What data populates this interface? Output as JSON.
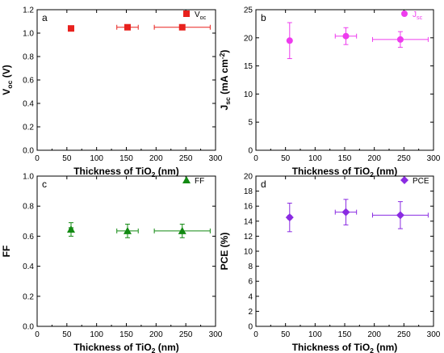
{
  "chart_data": [
    {
      "type": "scatter",
      "panel_label": "a",
      "xlabel": "Thickness of TiO₂ (nm)",
      "ylabel": "Voc (V)",
      "xlim": [
        0,
        300
      ],
      "ylim": [
        0,
        1.2
      ],
      "xticks": [
        "0",
        "50",
        "100",
        "150",
        "200",
        "250",
        "300"
      ],
      "yticks": [
        "0.0",
        "0.2",
        "0.4",
        "0.6",
        "0.8",
        "1.0",
        "1.2"
      ],
      "legend_position": "top-right",
      "series": [
        {
          "name": "Voc",
          "marker": "square",
          "color": "#e8211d",
          "points": [
            {
              "x": 57,
              "y": 1.04,
              "xerr": 3,
              "yerr": 0.02
            },
            {
              "x": 152,
              "y": 1.05,
              "xerr": 18,
              "yerr": 0.01
            },
            {
              "x": 244,
              "y": 1.05,
              "xerr": 47,
              "yerr": 0.01
            }
          ]
        }
      ]
    },
    {
      "type": "scatter",
      "panel_label": "b",
      "xlabel": "Thickness of TiO₂ (nm)",
      "ylabel": "Jsc (mA cm⁻²)",
      "xlim": [
        0,
        300
      ],
      "ylim": [
        0,
        25
      ],
      "xticks": [
        "0",
        "50",
        "100",
        "150",
        "200",
        "250",
        "300"
      ],
      "yticks": [
        "0",
        "5",
        "10",
        "15",
        "20",
        "25"
      ],
      "legend_position": "top-right",
      "series": [
        {
          "name": "Jsc",
          "marker": "circle",
          "color": "#ee3cee",
          "points": [
            {
              "x": 57,
              "y": 19.5,
              "xerr": 3,
              "yerr": 3.2
            },
            {
              "x": 152,
              "y": 20.3,
              "xerr": 18,
              "yerr": 1.5
            },
            {
              "x": 244,
              "y": 19.7,
              "xerr": 47,
              "yerr": 1.4
            }
          ]
        }
      ]
    },
    {
      "type": "scatter",
      "panel_label": "c",
      "xlabel": "Thickness of TiO₂ (nm)",
      "ylabel": "FF",
      "xlim": [
        0,
        300
      ],
      "ylim": [
        0,
        1.0
      ],
      "xticks": [
        "0",
        "50",
        "100",
        "150",
        "200",
        "250",
        "300"
      ],
      "yticks": [
        "0.0",
        "0.2",
        "0.4",
        "0.6",
        "0.8",
        "1.0"
      ],
      "legend_position": "top-right",
      "series": [
        {
          "name": "FF",
          "marker": "triangle",
          "color": "#128a12",
          "points": [
            {
              "x": 57,
              "y": 0.645,
              "xerr": 3,
              "yerr": 0.045
            },
            {
              "x": 152,
              "y": 0.635,
              "xerr": 18,
              "yerr": 0.045
            },
            {
              "x": 244,
              "y": 0.635,
              "xerr": 47,
              "yerr": 0.045
            }
          ]
        }
      ]
    },
    {
      "type": "scatter",
      "panel_label": "d",
      "xlabel": "Thickness of TiO₂ (nm)",
      "ylabel": "PCE (%)",
      "xlim": [
        0,
        300
      ],
      "ylim": [
        0,
        20
      ],
      "xticks": [
        "0",
        "50",
        "100",
        "150",
        "200",
        "250",
        "300"
      ],
      "yticks": [
        "0",
        "2",
        "4",
        "6",
        "8",
        "10",
        "12",
        "14",
        "16",
        "18",
        "20"
      ],
      "legend_position": "top-right",
      "series": [
        {
          "name": "PCE",
          "marker": "diamond",
          "color": "#8a2be2",
          "points": [
            {
              "x": 57,
              "y": 14.5,
              "xerr": 3,
              "yerr": 1.9
            },
            {
              "x": 152,
              "y": 15.2,
              "xerr": 18,
              "yerr": 1.7
            },
            {
              "x": 244,
              "y": 14.8,
              "xerr": 47,
              "yerr": 1.8
            }
          ]
        }
      ]
    }
  ]
}
